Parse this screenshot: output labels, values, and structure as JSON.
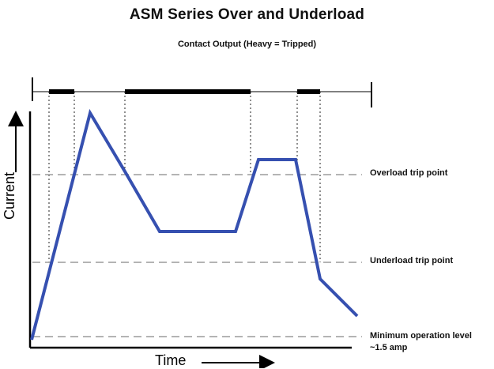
{
  "title": "ASM Series Over and Underload",
  "subtitle": "Contact Output (Heavy = Tripped)",
  "levels": {
    "overload": {
      "label": "Overload trip point"
    },
    "underload": {
      "label": "Underload trip point"
    },
    "minimum": {
      "label_line1": "Minimum operation level",
      "label_line2": "~1.5 amp"
    }
  },
  "axes": {
    "y_label": "Current",
    "x_label": "Time"
  },
  "colors": {
    "current_line": "#3650b0",
    "dashed": "#9b9b9b",
    "text": "#111111"
  }
}
